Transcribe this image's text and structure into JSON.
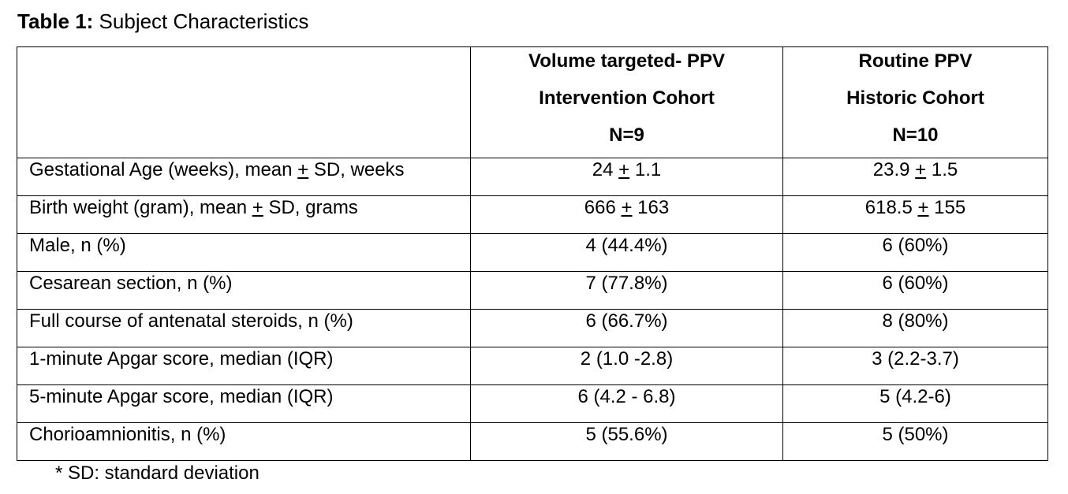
{
  "title": {
    "prefix": "Table 1:",
    "text": " Subject Characteristics"
  },
  "table": {
    "columns": [
      {
        "label": ""
      },
      {
        "lines": [
          "Volume targeted- PPV",
          "Intervention Cohort",
          "N=9"
        ]
      },
      {
        "lines": [
          "Routine PPV",
          "Historic Cohort",
          "N=10"
        ]
      }
    ],
    "rows": [
      {
        "label_before": "Gestational Age (weeks), mean ",
        "label_pm": "+",
        "label_after": " SD, weeks",
        "v1_a": "24 ",
        "v1_pm": "+",
        "v1_b": " 1.1",
        "v2_a": "23.9 ",
        "v2_pm": "+",
        "v2_b": " 1.5"
      },
      {
        "label_before": "Birth weight (gram), mean ",
        "label_pm": "+",
        "label_after": " SD, grams",
        "v1_a": "666 ",
        "v1_pm": "+",
        "v1_b": " 163",
        "v2_a": "618.5 ",
        "v2_pm": "+",
        "v2_b": " 155"
      },
      {
        "label": "Male, n (%)",
        "v1": "4 (44.4%)",
        "v2": "6 (60%)"
      },
      {
        "label": "Cesarean section, n (%)",
        "v1": "7 (77.8%)",
        "v2": "6 (60%)"
      },
      {
        "label": "Full course of antenatal steroids, n (%)",
        "v1": "6 (66.7%)",
        "v2": "8 (80%)"
      },
      {
        "label": "1-minute Apgar score, median (IQR)",
        "v1": "2 (1.0 -2.8)",
        "v2": "3 (2.2-3.7)"
      },
      {
        "label": "5-minute Apgar score, median (IQR)",
        "v1": "6 (4.2 - 6.8)",
        "v2": "5 (4.2-6)"
      },
      {
        "label": "Chorioamnionitis, n (%)",
        "v1": "5 (55.6%)",
        "v2": "5 (50%)"
      }
    ]
  },
  "footnote": "* SD: standard deviation"
}
